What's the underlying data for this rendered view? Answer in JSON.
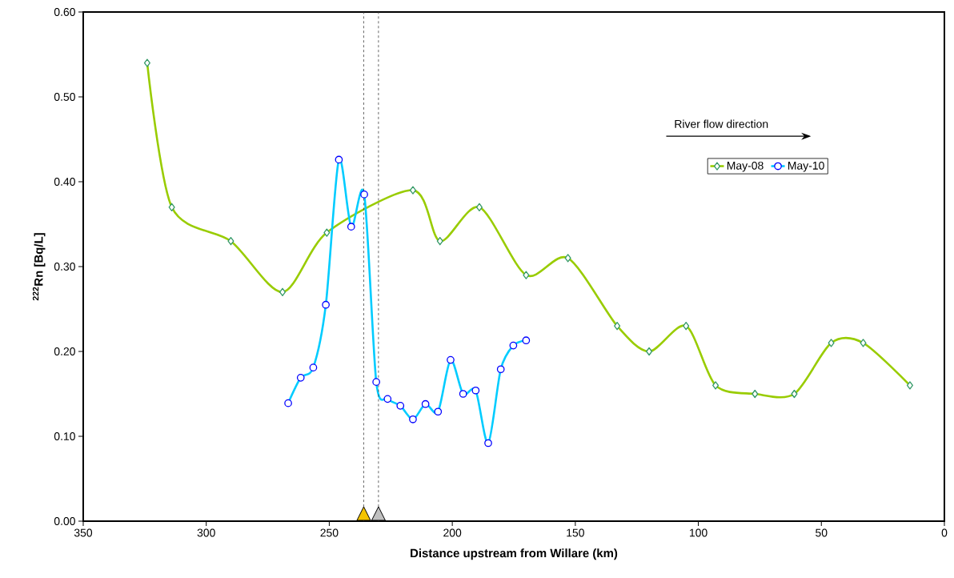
{
  "chart_data": {
    "type": "line",
    "xlabel": "Distance upstream from Willare (km)",
    "ylabel": "$^{222}$Rn [Bq/L]",
    "xlim": [
      350,
      0
    ],
    "xticks": [
      350,
      300,
      250,
      200,
      150,
      100,
      50,
      0
    ],
    "ylim": [
      0,
      0.6
    ],
    "yticks": [
      {
        "value": 0,
        "label": "0.00"
      },
      {
        "value": 0.1,
        "label": "0.10"
      },
      {
        "value": 0.2,
        "label": "0.20"
      },
      {
        "value": 0.3,
        "label": "0.30"
      },
      {
        "value": 0.4,
        "label": "0.40"
      },
      {
        "value": 0.5,
        "label": "0.50"
      },
      {
        "value": 0.6,
        "label": "0.60"
      }
    ],
    "series": [
      {
        "name": "May-08",
        "color": "#99cc00",
        "marker": "diamond",
        "x": [
          324,
          314,
          290,
          269,
          251,
          216,
          205,
          189,
          170,
          153,
          133,
          120,
          105,
          93,
          77,
          61,
          46,
          33,
          14
        ],
        "values": [
          0.54,
          0.37,
          0.33,
          0.27,
          0.34,
          0.39,
          0.33,
          0.37,
          0.29,
          0.31,
          0.23,
          0.2,
          0.23,
          0.16,
          0.15,
          0.15,
          0.21,
          0.21,
          0.16
        ]
      },
      {
        "name": "May-10",
        "color": "#00ccff",
        "marker": "circle",
        "x": [
          266.7,
          261.6,
          256.5,
          251.4,
          246.1,
          241.1,
          235.8,
          230.9,
          226.3,
          221.1,
          216.0,
          210.9,
          205.8,
          200.7,
          195.6,
          190.5,
          185.4,
          180.3,
          175.2,
          170.0
        ],
        "values": [
          0.139,
          0.169,
          0.181,
          0.255,
          0.426,
          0.347,
          0.385,
          0.164,
          0.144,
          0.136,
          0.12,
          0.138,
          0.129,
          0.19,
          0.15,
          0.154,
          0.092,
          0.179,
          0.207,
          0.213
        ]
      }
    ],
    "ref_lines": [
      {
        "axis": "x",
        "value": 236,
        "color": "#404040",
        "line_style": "dashed"
      },
      {
        "axis": "x",
        "value": 230,
        "color": "#404040",
        "line_style": "dashed"
      }
    ],
    "annotations": [
      "River flow direction"
    ],
    "legend": "top right",
    "line_style": "solid"
  }
}
